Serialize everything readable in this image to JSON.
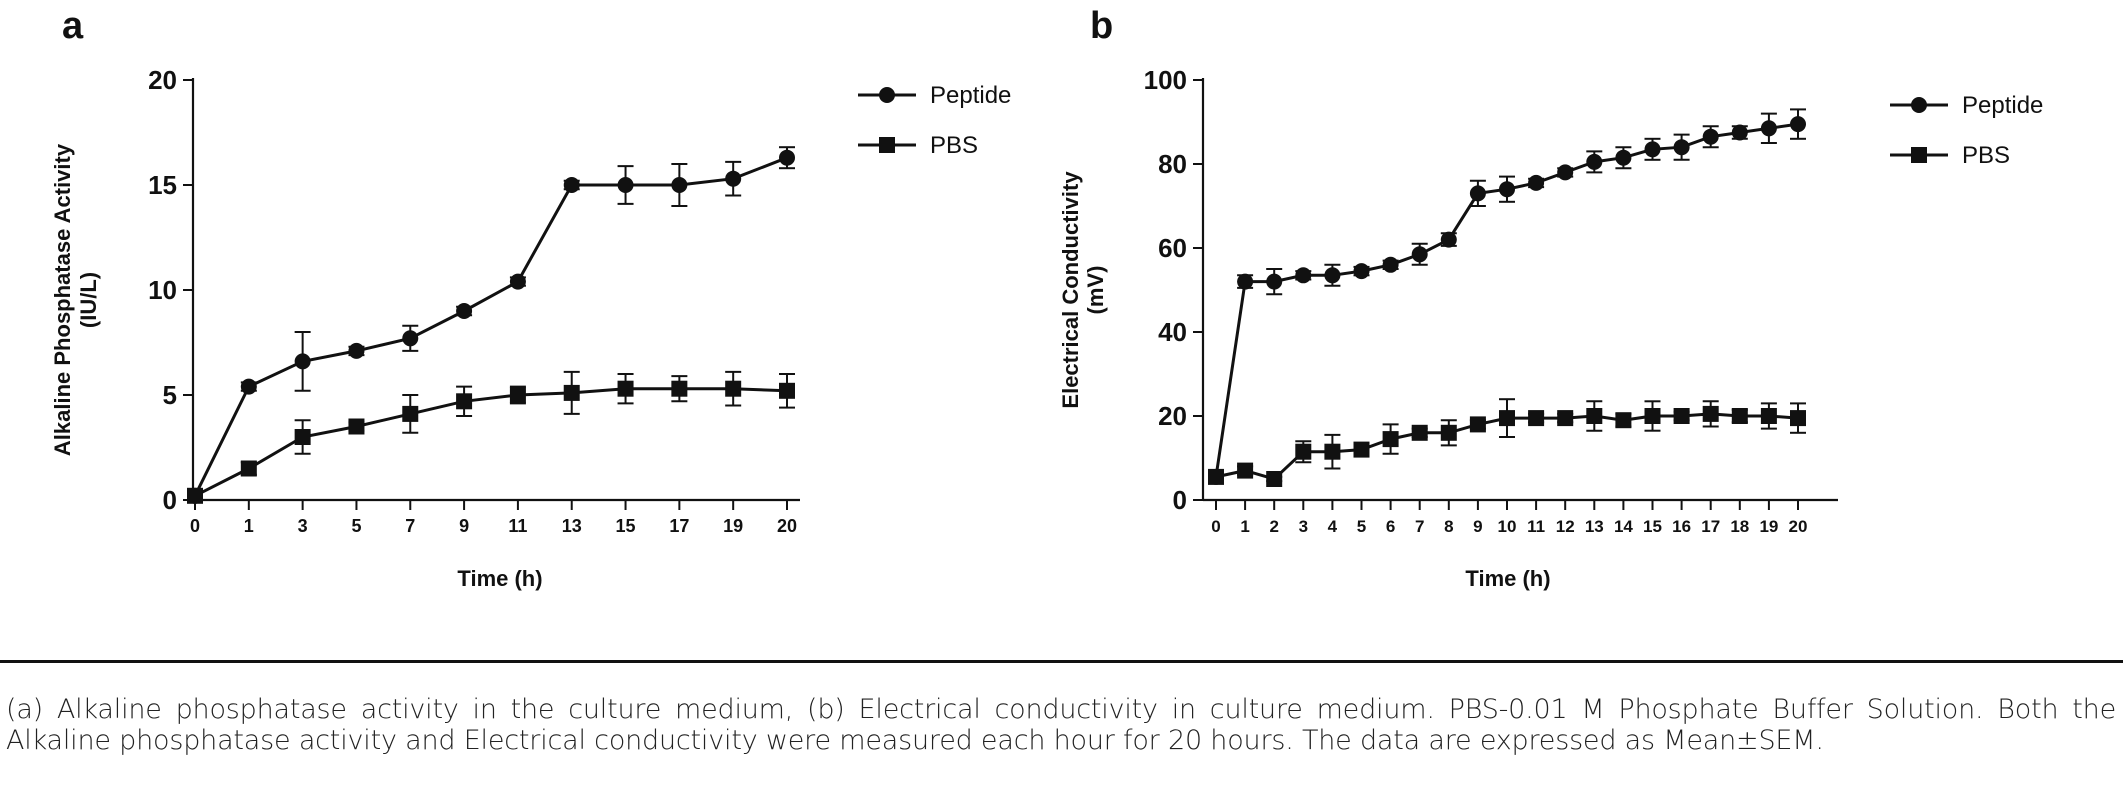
{
  "chart_data": [
    {
      "panel": "a",
      "type": "line",
      "title": "",
      "xlabel": "Time (h)",
      "ylabel_lines": [
        "Alkaline Phosphatase Activity",
        "(IU/L)"
      ],
      "categories": [
        "0",
        "1",
        "3",
        "5",
        "7",
        "9",
        "11",
        "13",
        "15",
        "17",
        "19",
        "20"
      ],
      "yticks": [
        0,
        5,
        10,
        15,
        20
      ],
      "ylim": [
        0,
        20
      ],
      "legend_position": "top-right",
      "series": [
        {
          "name": "Peptide",
          "marker": "circle",
          "values": [
            0.2,
            5.4,
            6.6,
            7.1,
            7.7,
            9.0,
            10.4,
            15.0,
            15.0,
            15.0,
            15.3,
            16.3
          ],
          "errors": [
            0.1,
            0.2,
            1.4,
            0.2,
            0.6,
            0.2,
            0.2,
            0.2,
            0.9,
            1.0,
            0.8,
            0.5
          ]
        },
        {
          "name": "PBS",
          "marker": "square",
          "values": [
            0.2,
            1.5,
            3.0,
            3.5,
            4.1,
            4.7,
            5.0,
            5.1,
            5.3,
            5.3,
            5.3,
            5.2
          ],
          "errors": [
            0.1,
            0.3,
            0.8,
            0.2,
            0.9,
            0.7,
            0.4,
            1.0,
            0.7,
            0.6,
            0.8,
            0.8
          ]
        }
      ]
    },
    {
      "panel": "b",
      "type": "line",
      "title": "",
      "xlabel": "Time (h)",
      "ylabel_lines": [
        "Electrical Conductivity",
        "(mV)"
      ],
      "categories": [
        "0",
        "1",
        "2",
        "3",
        "4",
        "5",
        "6",
        "7",
        "8",
        "9",
        "10",
        "11",
        "12",
        "13",
        "14",
        "15",
        "16",
        "17",
        "18",
        "19",
        "20"
      ],
      "yticks": [
        0,
        20,
        40,
        60,
        80,
        100
      ],
      "ylim": [
        0,
        100
      ],
      "legend_position": "top-right",
      "series": [
        {
          "name": "Peptide",
          "marker": "circle",
          "values": [
            5.5,
            52,
            52,
            53.5,
            53.5,
            54.5,
            56,
            58.5,
            62,
            73,
            74,
            75.5,
            78,
            80.5,
            81.5,
            83.5,
            84,
            86.5,
            87.5,
            88.5,
            89.5
          ],
          "errors": [
            0.5,
            1.5,
            3,
            1,
            2.5,
            1,
            1,
            2.5,
            1.5,
            3,
            3,
            1,
            1,
            2.5,
            2.5,
            2.5,
            3,
            2.5,
            1.5,
            3.5,
            3.5
          ]
        },
        {
          "name": "PBS",
          "marker": "square",
          "values": [
            5.5,
            7,
            5,
            11.5,
            11.5,
            12,
            14.5,
            16,
            16,
            18,
            19.5,
            19.5,
            19.5,
            20,
            19,
            20,
            20,
            20.5,
            20,
            20,
            19.5
          ],
          "errors": [
            0.5,
            1,
            0.5,
            2.5,
            4,
            1.5,
            3.5,
            1,
            3,
            1,
            4.5,
            1,
            1,
            3.5,
            1.5,
            3.5,
            1,
            3,
            1.5,
            3,
            3.5
          ]
        }
      ]
    }
  ],
  "caption": "(a) Alkaline phosphatase activity in the culture medium, (b) Electrical conductivity in culture medium. PBS-0.01 M Phosphate Buffer Solution. Both the Alkaline phosphatase activity and Electrical conductivity were measured each hour for 20 hours. The data are expressed as Mean±SEM."
}
